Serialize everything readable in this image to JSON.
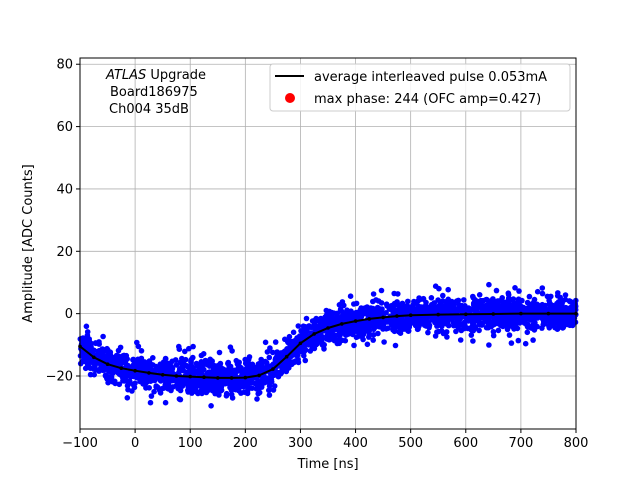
{
  "chart_data": {
    "type": "scatter",
    "xlabel": "Time [ns]",
    "ylabel": "Amplitude [ADC Counts]",
    "xlim": [
      -100,
      800
    ],
    "ylim": [
      -37,
      82
    ],
    "xticks": [
      -100,
      0,
      100,
      200,
      300,
      400,
      500,
      600,
      700,
      800
    ],
    "yticks": [
      -20,
      0,
      20,
      40,
      60,
      80
    ],
    "grid": true,
    "legend_position": "top-right",
    "annotation": {
      "italic": "ATLAS",
      "line1_rest": " Upgrade",
      "line2": "Board186975",
      "line3": "Ch004 35dB"
    },
    "series": [
      {
        "name": "average interleaved pulse 0.053mA",
        "kind": "line",
        "color": "#000000",
        "x": [
          -100,
          -75,
          -50,
          -25,
          0,
          25,
          50,
          75,
          100,
          125,
          150,
          175,
          200,
          225,
          250,
          275,
          300,
          325,
          350,
          375,
          400,
          425,
          450,
          475,
          500,
          550,
          600,
          650,
          700,
          750,
          800
        ],
        "y": [
          -10.5,
          -14,
          -16.2,
          -17.5,
          -18.3,
          -19,
          -19.6,
          -20,
          -20.2,
          -20.4,
          -20.6,
          -20.6,
          -20.5,
          -19.8,
          -17.8,
          -13.8,
          -9.5,
          -6.5,
          -4.6,
          -3.3,
          -2.4,
          -1.7,
          -1.2,
          -0.8,
          -0.5,
          -0.3,
          -0.2,
          -0.1,
          0,
          0,
          0
        ]
      },
      {
        "name": "",
        "kind": "scatter-band",
        "color": "#0000ff",
        "spread_core": 4.5,
        "spread_outlier": 10
      }
    ],
    "max_phase_marker": {
      "label": "max phase: 244 (OFC amp=0.427)",
      "color": "#ff0000"
    }
  }
}
